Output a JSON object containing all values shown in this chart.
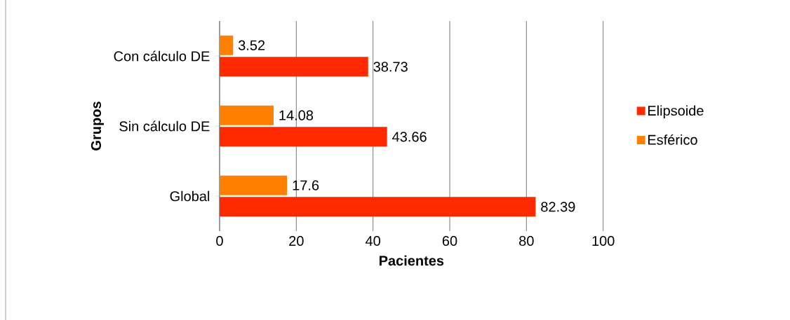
{
  "chart_data": {
    "type": "bar",
    "orientation": "horizontal",
    "xlabel": "Pacientes",
    "ylabel": "Grupos",
    "categories": [
      "Con cálculo DE",
      "Sin cálculo DE",
      "Global"
    ],
    "series": [
      {
        "name": "Elipsoide",
        "color": "#ff2a00",
        "values": [
          38.73,
          43.66,
          82.39
        ]
      },
      {
        "name": "Esférico",
        "color": "#ff8000",
        "values": [
          3.52,
          14.08,
          17.6
        ]
      }
    ],
    "xlim": [
      0,
      100
    ],
    "xticks": [
      0,
      20,
      40,
      60,
      80,
      100
    ],
    "grid": "x",
    "legend": "right",
    "data_labels": true
  }
}
